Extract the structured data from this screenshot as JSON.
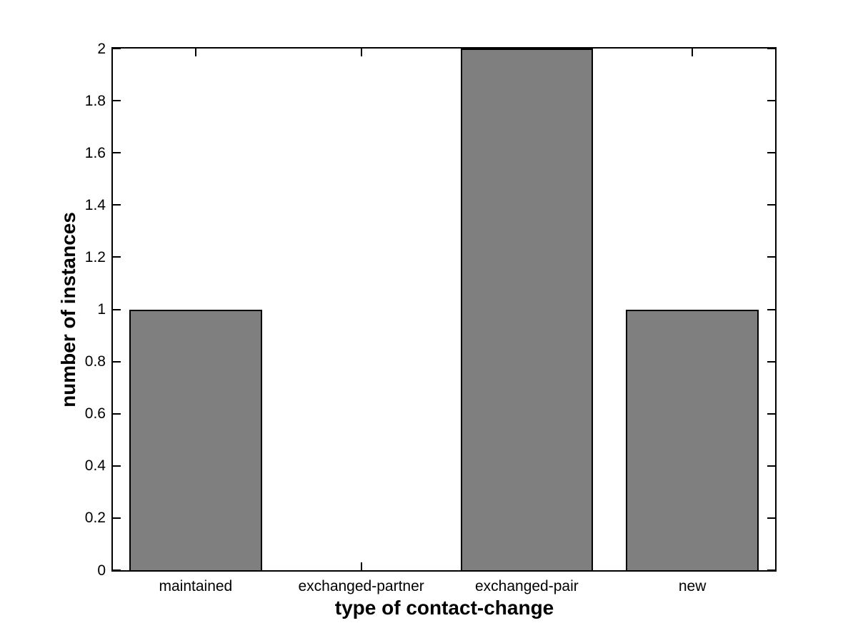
{
  "chart_data": {
    "type": "bar",
    "categories": [
      "maintained",
      "exchanged-partner",
      "exchanged-pair",
      "new"
    ],
    "values": [
      1,
      0,
      2,
      1
    ],
    "xlabel": "type of contact-change",
    "ylabel": "number of instances",
    "ylim": [
      0,
      2
    ],
    "yticks": [
      0,
      0.2,
      0.4,
      0.6,
      0.8,
      1,
      1.2,
      1.4,
      1.6,
      1.8,
      2
    ],
    "ytick_labels": [
      "0",
      "0.2",
      "0.4",
      "0.6",
      "0.8",
      "1",
      "1.2",
      "1.4",
      "1.6",
      "1.8",
      "2"
    ],
    "bar_width_fraction": 0.8,
    "bar_color": "#7f7f7f",
    "bar_edge_color": "#000000",
    "axis_color": "#000000",
    "background_color": "#ffffff",
    "grid": false,
    "legend": false,
    "tick_direction": "in"
  }
}
